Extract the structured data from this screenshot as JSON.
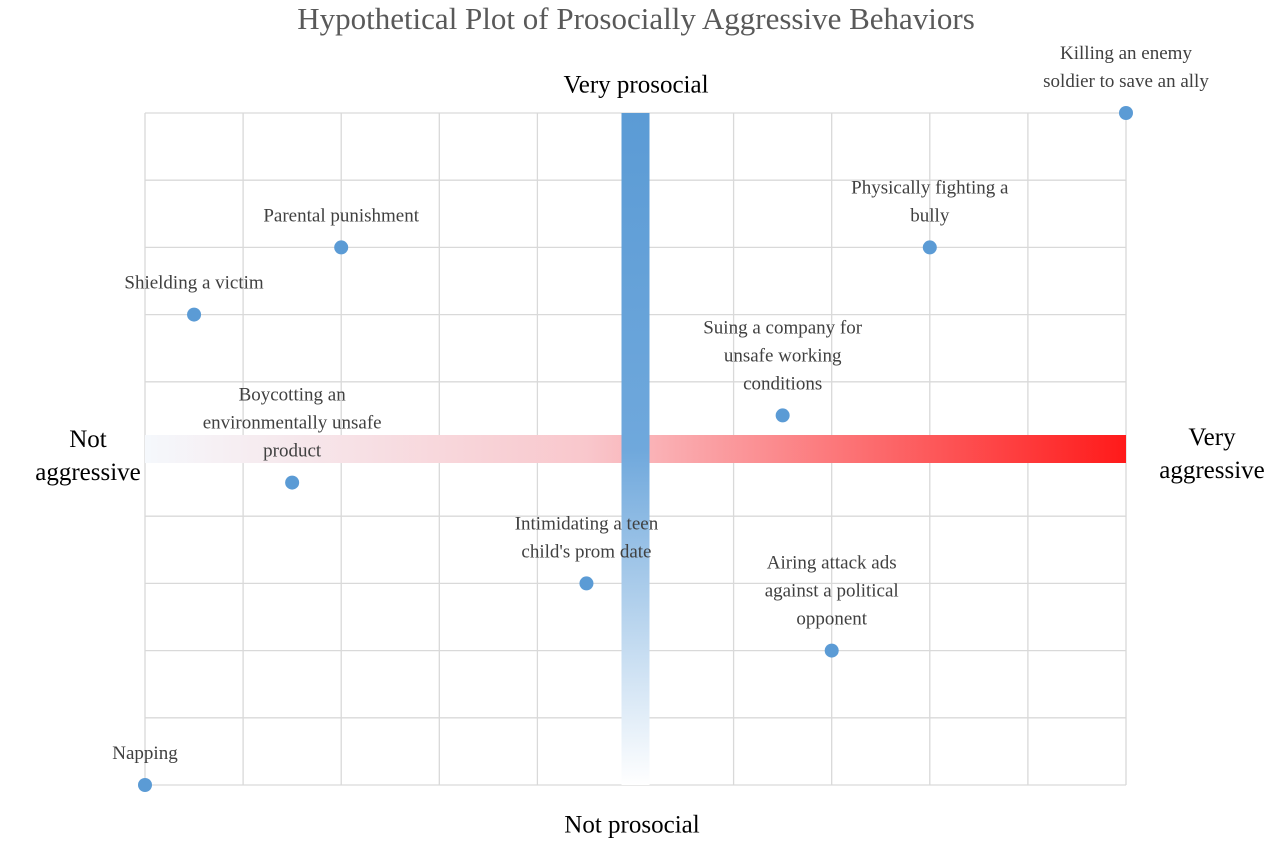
{
  "chart_data": {
    "type": "scatter",
    "title": "Hypothetical Plot of Prosocially Aggressive Behaviors",
    "y_top_label": "Very prosocial",
    "y_bottom_label": "Not prosocial",
    "x_left_label": [
      "Not",
      "aggressive"
    ],
    "x_right_label": [
      "Very",
      "aggressive"
    ],
    "xlim": [
      0,
      10
    ],
    "ylim": [
      0,
      10
    ],
    "xticks": [
      0,
      1,
      2,
      3,
      4,
      5,
      6,
      7,
      8,
      9,
      10
    ],
    "yticks": [
      0,
      1,
      2,
      3,
      4,
      5,
      6,
      7,
      8,
      9,
      10
    ],
    "grid": true,
    "color": "#5b9bd5",
    "x": [
      0,
      10,
      2,
      0.5,
      8,
      6.5,
      1.5,
      4.5,
      7
    ],
    "values": [
      0,
      10,
      8,
      7,
      8,
      5.5,
      4.5,
      3,
      2
    ],
    "labels": [
      [
        "Napping"
      ],
      [
        "Killing an enemy",
        "soldier to save an ally"
      ],
      [
        "Parental punishment"
      ],
      [
        "Shielding a victim"
      ],
      [
        "Physically fighting a",
        "bully"
      ],
      [
        "Suing a company for",
        "unsafe working",
        "conditions"
      ],
      [
        "Boycotting an",
        "environmentally unsafe",
        "product"
      ],
      [
        "Intimidating a teen",
        "child's prom date"
      ],
      [
        "Airing attack ads",
        "against a political",
        "opponent"
      ]
    ]
  }
}
